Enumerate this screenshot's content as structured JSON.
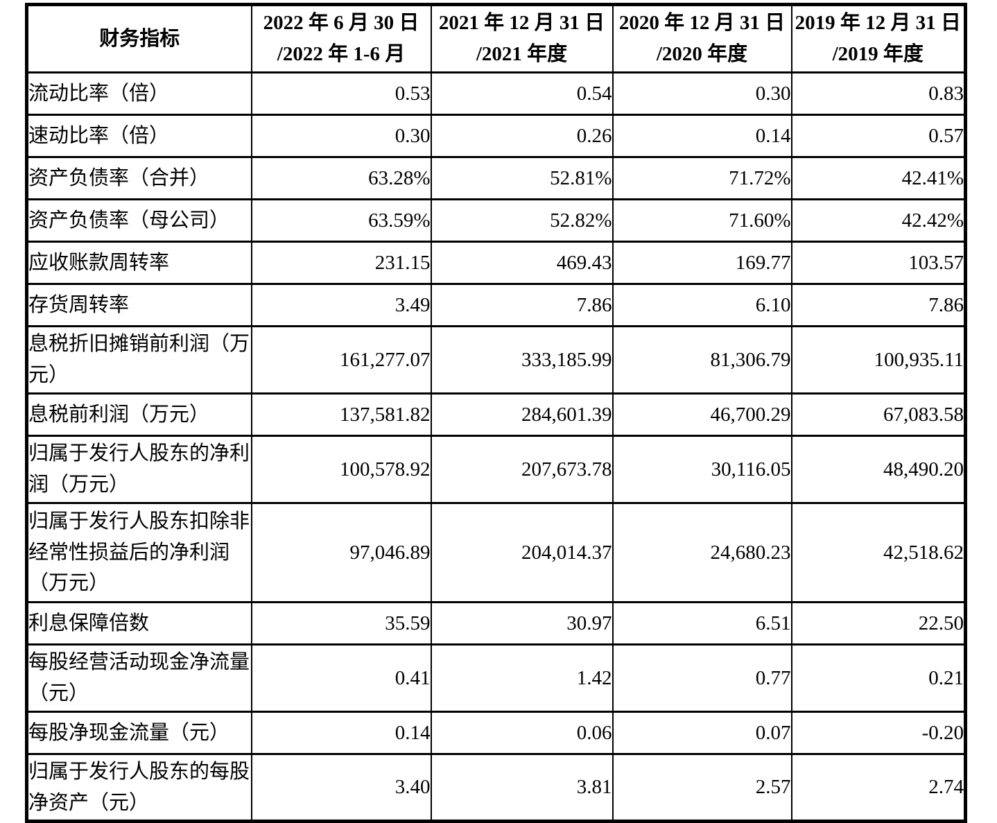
{
  "table": {
    "header": {
      "indicator_label": "财务指标",
      "periods": [
        {
          "line1": "2022 年 6 月 30 日",
          "line2": "/2022 年 1-6 月"
        },
        {
          "line1": "2021 年 12 月 31 日",
          "line2": "/2021 年度"
        },
        {
          "line1": "2020 年 12 月 31 日",
          "line2": "/2020 年度"
        },
        {
          "line1": "2019 年 12 月 31 日",
          "line2": "/2019 年度"
        }
      ]
    },
    "rows": [
      {
        "label": "流动比率（倍）",
        "values": [
          "0.53",
          "0.54",
          "0.30",
          "0.83"
        ]
      },
      {
        "label": "速动比率（倍）",
        "values": [
          "0.30",
          "0.26",
          "0.14",
          "0.57"
        ]
      },
      {
        "label": "资产负债率（合并）",
        "values": [
          "63.28%",
          "52.81%",
          "71.72%",
          "42.41%"
        ]
      },
      {
        "label": "资产负债率（母公司）",
        "values": [
          "63.59%",
          "52.82%",
          "71.60%",
          "42.42%"
        ]
      },
      {
        "label": "应收账款周转率",
        "values": [
          "231.15",
          "469.43",
          "169.77",
          "103.57"
        ]
      },
      {
        "label": "存货周转率",
        "values": [
          "3.49",
          "7.86",
          "6.10",
          "7.86"
        ]
      },
      {
        "label": "息税折旧摊销前利润（万元）",
        "values": [
          "161,277.07",
          "333,185.99",
          "81,306.79",
          "100,935.11"
        ]
      },
      {
        "label": "息税前利润（万元）",
        "values": [
          "137,581.82",
          "284,601.39",
          "46,700.29",
          "67,083.58"
        ]
      },
      {
        "label": "归属于发行人股东的净利润（万元）",
        "values": [
          "100,578.92",
          "207,673.78",
          "30,116.05",
          "48,490.20"
        ]
      },
      {
        "label": "归属于发行人股东扣除非经常性损益后的净利润（万元）",
        "values": [
          "97,046.89",
          "204,014.37",
          "24,680.23",
          "42,518.62"
        ]
      },
      {
        "label": "利息保障倍数",
        "values": [
          "35.59",
          "30.97",
          "6.51",
          "22.50"
        ]
      },
      {
        "label": "每股经营活动现金净流量（元）",
        "values": [
          "0.41",
          "1.42",
          "0.77",
          "0.21"
        ]
      },
      {
        "label": "每股净现金流量（元）",
        "values": [
          "0.14",
          "0.06",
          "0.07",
          "-0.20"
        ]
      },
      {
        "label": "归属于发行人股东的每股净资产（元）",
        "values": [
          "3.40",
          "3.81",
          "2.57",
          "2.74"
        ]
      }
    ]
  },
  "text_color": "#000000",
  "background_color": "#ffffff",
  "border_color": "#000000"
}
